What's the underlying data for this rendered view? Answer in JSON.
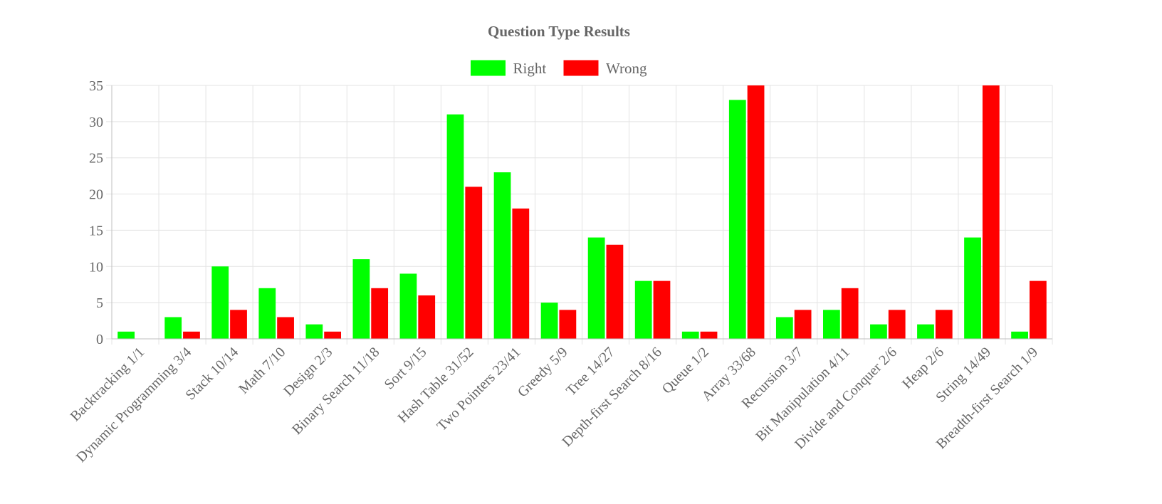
{
  "chart_data": {
    "type": "bar",
    "title": "Question Type Results",
    "xlabel": "",
    "ylabel": "",
    "ylim": [
      0,
      35
    ],
    "yticks": [
      0,
      5,
      10,
      15,
      20,
      25,
      30,
      35
    ],
    "grid": true,
    "legend_position": "top-center",
    "categories": [
      "Backtracking 1/1",
      "Dynamic Programming 3/4",
      "Stack 10/14",
      "Math 7/10",
      "Design 2/3",
      "Binary Search 11/18",
      "Sort 9/15",
      "Hash Table 31/52",
      "Two Pointers 23/41",
      "Greedy 5/9",
      "Tree 14/27",
      "Depth-first Search 8/16",
      "Queue 1/2",
      "Array 33/68",
      "Recursion 3/7",
      "Bit Manipulation 4/11",
      "Divide and Conquer 2/6",
      "Heap 2/6",
      "String 14/49",
      "Breadth-first Search 1/9"
    ],
    "series": [
      {
        "name": "Right",
        "color": "#00ff00",
        "values": [
          1,
          3,
          10,
          7,
          2,
          11,
          9,
          31,
          23,
          5,
          14,
          8,
          1,
          33,
          3,
          4,
          2,
          2,
          14,
          1
        ]
      },
      {
        "name": "Wrong",
        "color": "#ff0000",
        "values": [
          0,
          1,
          4,
          3,
          1,
          7,
          6,
          21,
          18,
          4,
          13,
          8,
          1,
          35,
          4,
          7,
          4,
          4,
          35,
          8
        ]
      }
    ]
  }
}
